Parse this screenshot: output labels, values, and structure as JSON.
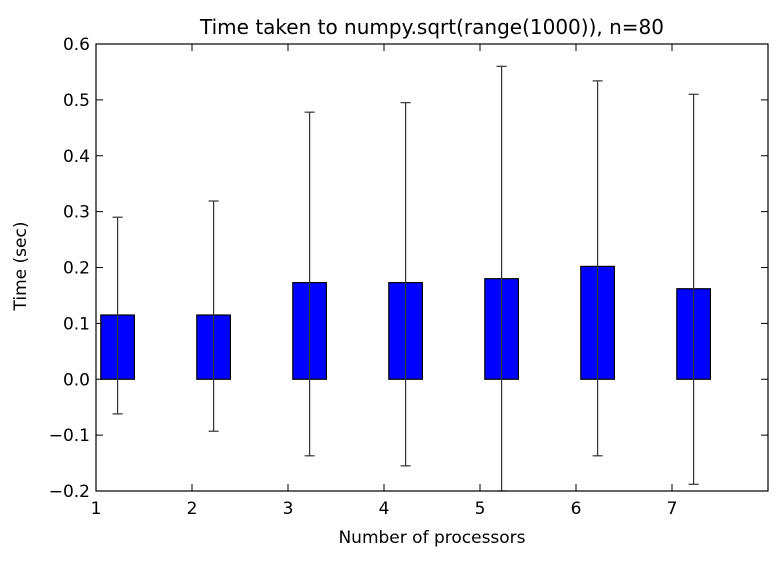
{
  "chart_data": {
    "type": "bar",
    "title": "Time taken to numpy.sqrt(range(1000)), n=80",
    "xlabel": "Number of processors",
    "ylabel": "Time (sec)",
    "categories": [
      1,
      2,
      3,
      4,
      5,
      6,
      7
    ],
    "values": [
      0.115,
      0.115,
      0.173,
      0.173,
      0.18,
      0.202,
      0.162
    ],
    "error_bars": {
      "lower": [
        -0.062,
        -0.093,
        -0.137,
        -0.155,
        -0.2,
        -0.137,
        -0.188
      ],
      "upper": [
        0.29,
        0.319,
        0.478,
        0.495,
        0.56,
        0.534,
        0.51
      ]
    },
    "xlim": [
      1,
      8
    ],
    "ylim": [
      -0.2,
      0.6
    ],
    "xticks": [
      "1",
      "2",
      "3",
      "4",
      "5",
      "6",
      "7"
    ],
    "yticks": [
      "−0.2",
      "−0.1",
      "0.0",
      "0.1",
      "0.2",
      "0.3",
      "0.4",
      "0.5",
      "0.6"
    ],
    "bar_color": "#0000ff",
    "grid": false,
    "legend": null
  }
}
